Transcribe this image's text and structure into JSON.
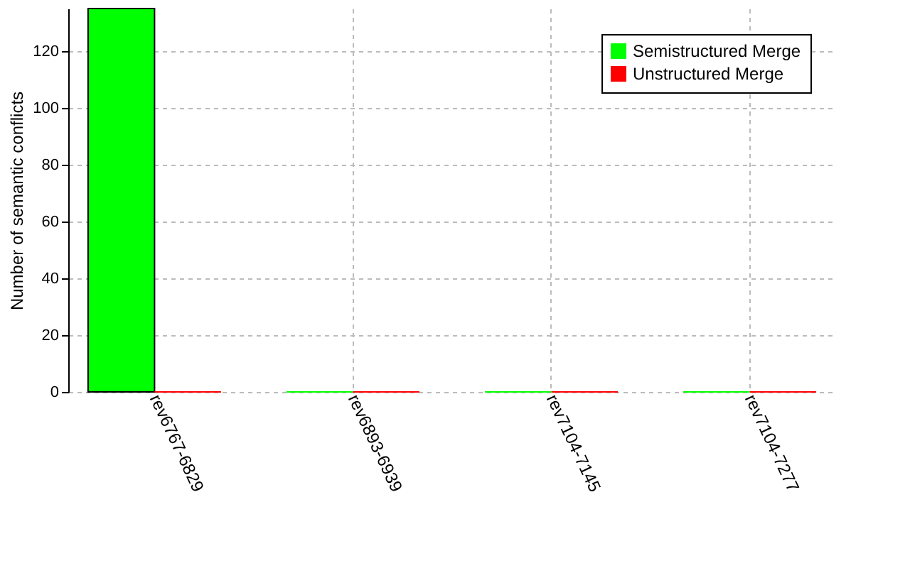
{
  "chart_data": {
    "type": "bar",
    "ylabel": "Number of semantic conflicts",
    "categories": [
      "rev6767-6829",
      "rev6893-6939",
      "rev7104-7145",
      "rev7104-7277"
    ],
    "series": [
      {
        "name": "Semistructured Merge",
        "color": "#00ff00",
        "values": [
          135,
          0,
          0,
          0
        ]
      },
      {
        "name": "Unstructured Merge",
        "color": "#ff0000",
        "values": [
          0,
          0,
          0,
          0
        ]
      }
    ],
    "ylim": [
      0,
      135
    ],
    "yticks": [
      0,
      20,
      40,
      60,
      80,
      100,
      120
    ],
    "grid": true,
    "legend": "top right"
  }
}
